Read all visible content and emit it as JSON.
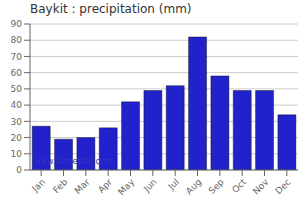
{
  "chart_data": {
    "type": "bar",
    "title": "Baykit : precipitation (mm)",
    "categories": [
      "Jan",
      "Feb",
      "Mar",
      "Apr",
      "May",
      "Jun",
      "Jul",
      "Aug",
      "Sep",
      "Oct",
      "Nov",
      "Dec"
    ],
    "values": [
      27,
      19,
      20,
      26,
      42,
      49,
      52,
      82,
      58,
      49,
      49,
      34
    ],
    "color": "#2222cc",
    "ylim": [
      0,
      90
    ],
    "yticks": [
      0,
      10,
      20,
      30,
      40,
      50,
      60,
      70,
      80,
      90
    ],
    "grid": true,
    "annotations": [
      "www.allmetsat.com"
    ]
  }
}
